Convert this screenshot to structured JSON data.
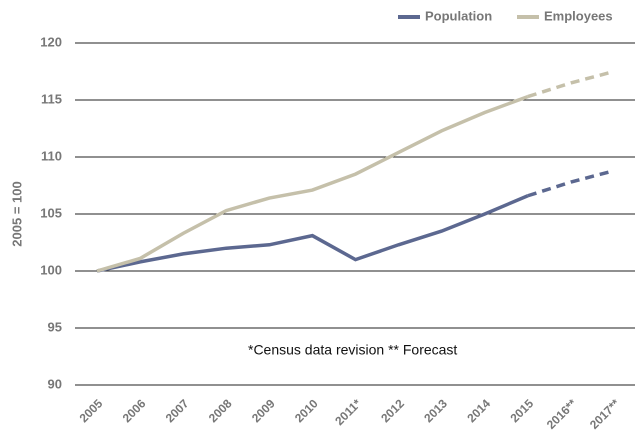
{
  "chart_data": {
    "type": "line",
    "ylabel": "2005 = 100",
    "annotation": "*Census data revision  ** Forecast",
    "categories": [
      "2005",
      "2006",
      "2007",
      "2008",
      "2009",
      "2010",
      "2011*",
      "2012",
      "2013",
      "2014",
      "2015",
      "2016**",
      "2017**"
    ],
    "series": [
      {
        "name": "Population",
        "color": "#5c6890",
        "values": [
          100,
          100.8,
          101.5,
          102,
          102.3,
          103.1,
          101,
          102.3,
          103.5,
          105,
          106.6,
          107.8,
          108.8
        ],
        "dashed": [
          false,
          false,
          false,
          false,
          false,
          false,
          false,
          false,
          false,
          false,
          false,
          true,
          true
        ]
      },
      {
        "name": "Employees",
        "color": "#c5c0aa",
        "values": [
          100,
          101.1,
          103.3,
          105.3,
          106.4,
          107.1,
          108.5,
          110.4,
          112.3,
          113.9,
          115.3,
          116.5,
          117.5
        ],
        "dashed": [
          false,
          false,
          false,
          false,
          false,
          false,
          false,
          false,
          false,
          false,
          false,
          true,
          true
        ]
      }
    ],
    "ylim": [
      90,
      120
    ],
    "yticks": [
      90,
      95,
      100,
      105,
      110,
      115,
      120
    ],
    "grid": true,
    "legend": "top-right"
  }
}
